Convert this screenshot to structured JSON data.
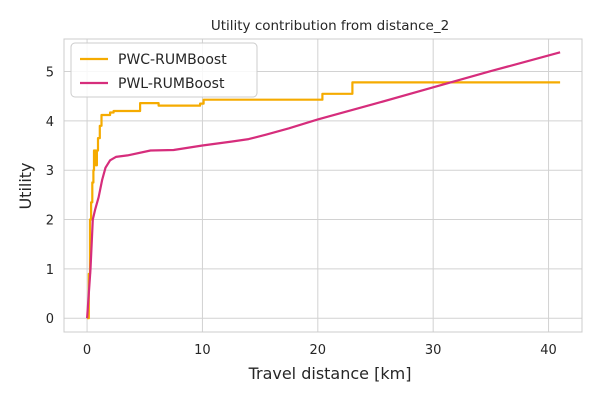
{
  "chart_data": {
    "type": "line",
    "title": "Utility contribution from distance_2",
    "xlabel": "Travel distance [km]",
    "ylabel": "Utility",
    "xlim": [
      -2.0,
      42.9
    ],
    "ylim": [
      -0.28,
      5.66
    ],
    "xticks": [
      0,
      10,
      20,
      30,
      40
    ],
    "yticks": [
      0,
      1,
      2,
      3,
      4,
      5
    ],
    "grid": true,
    "legend_position": "top-left",
    "series": [
      {
        "name": "PWC-RUMBoost",
        "color": "#f5ab00",
        "step": true,
        "points": [
          [
            0.0,
            0.0
          ],
          [
            0.15,
            0.0
          ],
          [
            0.15,
            0.9
          ],
          [
            0.25,
            0.9
          ],
          [
            0.25,
            2.0
          ],
          [
            0.35,
            2.0
          ],
          [
            0.35,
            2.35
          ],
          [
            0.45,
            2.35
          ],
          [
            0.45,
            2.75
          ],
          [
            0.55,
            2.75
          ],
          [
            0.55,
            3.0
          ],
          [
            0.6,
            3.0
          ],
          [
            0.6,
            3.4
          ],
          [
            0.75,
            3.4
          ],
          [
            0.75,
            3.1
          ],
          [
            0.85,
            3.1
          ],
          [
            0.85,
            3.4
          ],
          [
            0.95,
            3.4
          ],
          [
            0.95,
            3.65
          ],
          [
            1.1,
            3.65
          ],
          [
            1.1,
            3.9
          ],
          [
            1.25,
            3.9
          ],
          [
            1.25,
            4.12
          ],
          [
            2.0,
            4.12
          ],
          [
            2.0,
            4.17
          ],
          [
            2.3,
            4.17
          ],
          [
            2.3,
            4.2
          ],
          [
            4.6,
            4.2
          ],
          [
            4.6,
            4.36
          ],
          [
            6.2,
            4.36
          ],
          [
            6.2,
            4.31
          ],
          [
            9.8,
            4.31
          ],
          [
            9.8,
            4.35
          ],
          [
            10.1,
            4.35
          ],
          [
            10.1,
            4.43
          ],
          [
            20.4,
            4.43
          ],
          [
            20.4,
            4.55
          ],
          [
            23.0,
            4.55
          ],
          [
            23.0,
            4.78
          ],
          [
            41.0,
            4.78
          ]
        ]
      },
      {
        "name": "PWL-RUMBoost",
        "color": "#d62d7c",
        "step": false,
        "points": [
          [
            0.0,
            0.0
          ],
          [
            0.3,
            1.0
          ],
          [
            0.5,
            2.0
          ],
          [
            0.7,
            2.2
          ],
          [
            1.0,
            2.45
          ],
          [
            1.3,
            2.8
          ],
          [
            1.6,
            3.05
          ],
          [
            2.0,
            3.2
          ],
          [
            2.5,
            3.27
          ],
          [
            3.5,
            3.3
          ],
          [
            5.5,
            3.4
          ],
          [
            7.5,
            3.41
          ],
          [
            10.0,
            3.5
          ],
          [
            12.5,
            3.58
          ],
          [
            14.0,
            3.63
          ],
          [
            15.5,
            3.72
          ],
          [
            17.5,
            3.85
          ],
          [
            20.0,
            4.03
          ],
          [
            25.0,
            4.35
          ],
          [
            30.0,
            4.68
          ],
          [
            35.0,
            5.01
          ],
          [
            41.0,
            5.39
          ]
        ]
      }
    ]
  }
}
